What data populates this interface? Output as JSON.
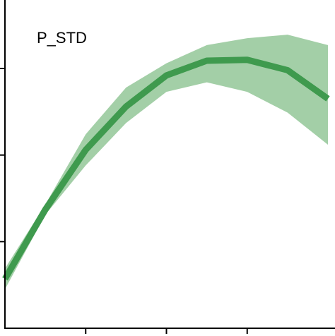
{
  "chart_data": {
    "type": "line",
    "title": "P_STD",
    "x": [
      0,
      0.5,
      1,
      1.5,
      2,
      2.5,
      3,
      3.5,
      4
    ],
    "values": [
      0.57,
      1.37,
      2.06,
      2.56,
      2.92,
      3.09,
      3.1,
      2.98,
      2.65
    ],
    "lower": [
      0.45,
      1.31,
      1.88,
      2.37,
      2.73,
      2.84,
      2.73,
      2.49,
      2.12
    ],
    "upper": [
      0.69,
      1.43,
      2.24,
      2.78,
      3.06,
      3.27,
      3.35,
      3.39,
      3.27
    ],
    "color": "#3f9a4e",
    "band_color": "#a3cfa7",
    "xlim": [
      0,
      4
    ],
    "ylim": [
      0,
      3.75
    ],
    "xticks": [
      1,
      2,
      3
    ],
    "yticks": [
      1,
      2,
      3
    ]
  }
}
